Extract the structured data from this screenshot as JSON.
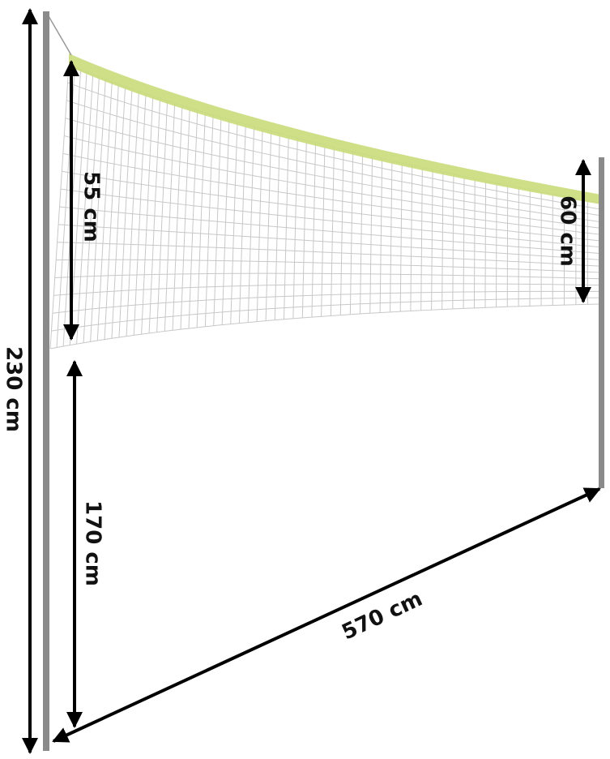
{
  "dimensions": {
    "total_height": "230 cm",
    "net_height_left": "55 cm",
    "net_height_right": "60 cm",
    "ground_clearance": "170 cm",
    "net_length": "570 cm"
  }
}
